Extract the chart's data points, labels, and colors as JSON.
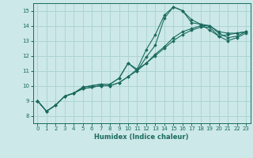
{
  "xlabel": "Humidex (Indice chaleur)",
  "ylabel": "",
  "bg_color": "#cce8e8",
  "line_color": "#1a6b5e",
  "grid_color": "#aed4d4",
  "xlim": [
    -0.5,
    23.5
  ],
  "ylim": [
    7.5,
    15.5
  ],
  "xticks": [
    0,
    1,
    2,
    3,
    4,
    5,
    6,
    7,
    8,
    9,
    10,
    11,
    12,
    13,
    14,
    15,
    16,
    17,
    18,
    19,
    20,
    21,
    22,
    23
  ],
  "yticks": [
    8,
    9,
    10,
    11,
    12,
    13,
    14,
    15
  ],
  "series": [
    [
      9.0,
      8.3,
      8.7,
      9.3,
      9.5,
      9.9,
      10.0,
      10.1,
      10.1,
      10.5,
      11.5,
      11.1,
      12.4,
      13.4,
      14.7,
      15.25,
      15.0,
      14.2,
      14.1,
      14.0,
      13.6,
      13.5,
      13.5,
      13.6
    ],
    [
      9.0,
      8.3,
      8.7,
      9.3,
      9.5,
      9.9,
      10.0,
      10.1,
      10.1,
      10.5,
      11.5,
      11.0,
      11.9,
      12.7,
      14.5,
      15.25,
      15.0,
      14.4,
      14.1,
      13.7,
      13.3,
      13.4,
      13.5,
      13.6
    ],
    [
      9.0,
      8.3,
      8.7,
      9.3,
      9.5,
      9.8,
      9.9,
      10.0,
      10.0,
      10.2,
      10.6,
      11.1,
      11.5,
      12.1,
      12.6,
      13.2,
      13.6,
      13.8,
      14.0,
      14.0,
      13.5,
      13.2,
      13.3,
      13.6
    ],
    [
      9.0,
      8.3,
      8.7,
      9.3,
      9.5,
      9.8,
      9.9,
      10.0,
      10.0,
      10.2,
      10.6,
      11.0,
      11.5,
      12.0,
      12.5,
      13.0,
      13.4,
      13.7,
      13.9,
      13.9,
      13.3,
      13.0,
      13.2,
      13.5
    ]
  ]
}
